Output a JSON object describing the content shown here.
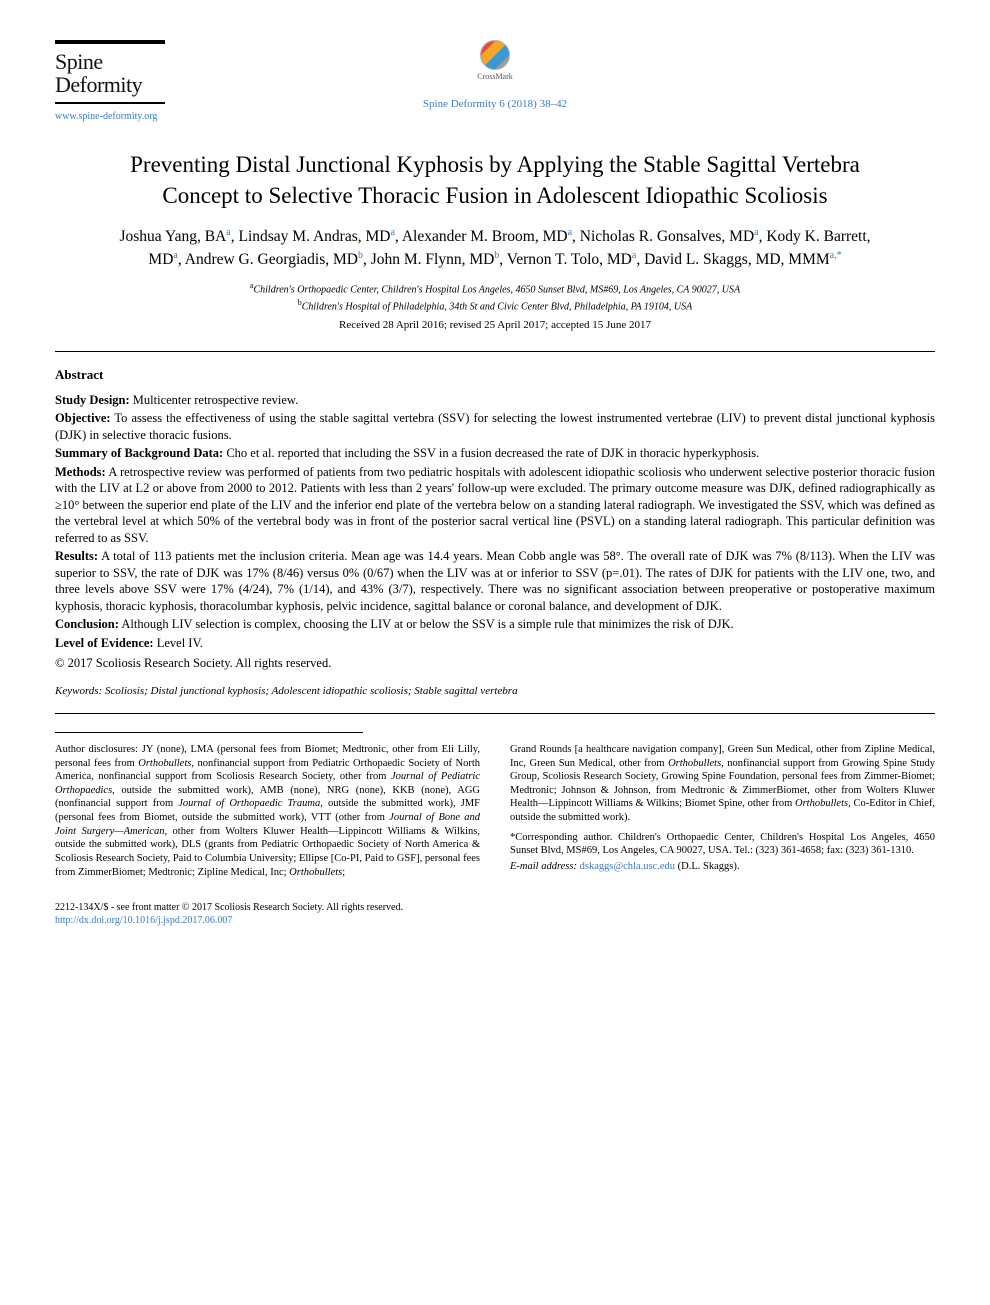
{
  "journal": {
    "name_line1": "Spine",
    "name_line2": "Deformity",
    "url": "www.spine-deformity.org",
    "citation": "Spine Deformity 6 (2018) 38–42"
  },
  "crossmark": {
    "label": "CrossMark"
  },
  "title": "Preventing Distal Junctional Kyphosis by Applying the Stable Sagittal Vertebra Concept to Selective Thoracic Fusion in Adolescent Idiopathic Scoliosis",
  "authors": [
    {
      "name": "Joshua Yang, BA",
      "aff": "a"
    },
    {
      "name": "Lindsay M. Andras, MD",
      "aff": "a"
    },
    {
      "name": "Alexander M. Broom, MD",
      "aff": "a"
    },
    {
      "name": "Nicholas R. Gonsalves, MD",
      "aff": "a"
    },
    {
      "name": "Kody K. Barrett, MD",
      "aff": "a"
    },
    {
      "name": "Andrew G. Georgiadis, MD",
      "aff": "b"
    },
    {
      "name": "John M. Flynn, MD",
      "aff": "b"
    },
    {
      "name": "Vernon T. Tolo, MD",
      "aff": "a"
    },
    {
      "name": "David L. Skaggs, MD, MMM",
      "aff": "a",
      "corr": true
    }
  ],
  "affiliations": {
    "a": "Children's Orthopaedic Center, Children's Hospital Los Angeles, 4650 Sunset Blvd, MS#69, Los Angeles, CA 90027, USA",
    "b": "Children's Hospital of Philadelphia, 34th St and Civic Center Blvd, Philadelphia, PA 19104, USA"
  },
  "dates": "Received 28 April 2016; revised 25 April 2017; accepted 15 June 2017",
  "abstract": {
    "label": "Abstract",
    "sections": [
      {
        "heading": "Study Design:",
        "text": "Multicenter retrospective review."
      },
      {
        "heading": "Objective:",
        "text": "To assess the effectiveness of using the stable sagittal vertebra (SSV) for selecting the lowest instrumented vertebrae (LIV) to prevent distal junctional kyphosis (DJK) in selective thoracic fusions."
      },
      {
        "heading": "Summary of Background Data:",
        "text": "Cho et al. reported that including the SSV in a fusion decreased the rate of DJK in thoracic hyperkyphosis."
      },
      {
        "heading": "Methods:",
        "text": "A retrospective review was performed of patients from two pediatric hospitals with adolescent idiopathic scoliosis who underwent selective posterior thoracic fusion with the LIV at L2 or above from 2000 to 2012. Patients with less than 2 years' follow-up were excluded. The primary outcome measure was DJK, defined radiographically as ≥10° between the superior end plate of the LIV and the inferior end plate of the vertebra below on a standing lateral radiograph. We investigated the SSV, which was defined as the vertebral level at which 50% of the vertebral body was in front of the posterior sacral vertical line (PSVL) on a standing lateral radiograph. This particular definition was referred to as SSV."
      },
      {
        "heading": "Results:",
        "text": "A total of 113 patients met the inclusion criteria. Mean age was 14.4 years. Mean Cobb angle was 58°. The overall rate of DJK was 7% (8/113). When the LIV was superior to SSV, the rate of DJK was 17% (8/46) versus 0% (0/67) when the LIV was at or inferior to SSV (p=.01). The rates of DJK for patients with the LIV one, two, and three levels above SSV were 17% (4/24), 7% (1/14), and 43% (3/7), respectively. There was no significant association between preoperative or postoperative maximum kyphosis, thoracic kyphosis, thoracolumbar kyphosis, pelvic incidence, sagittal balance or coronal balance, and development of DJK."
      },
      {
        "heading": "Conclusion:",
        "text": "Although LIV selection is complex, choosing the LIV at or below the SSV is a simple rule that minimizes the risk of DJK."
      },
      {
        "heading": "Level of Evidence:",
        "text": "Level IV."
      }
    ],
    "copyright": "© 2017 Scoliosis Research Society. All rights reserved."
  },
  "keywords": {
    "label": "Keywords:",
    "text": "Scoliosis; Distal junctional kyphosis; Adolescent idiopathic scoliosis; Stable sagittal vertebra"
  },
  "footnotes": {
    "left": "Author disclosures: JY (none), LMA (personal fees from Biomet; Medtronic, other from Eli Lilly, personal fees from Orthobullets, nonfinancial support from Pediatric Orthopaedic Society of North America, nonfinancial support from Scoliosis Research Society, other from Journal of Pediatric Orthopaedics, outside the submitted work), AMB (none), NRG (none), KKB (none), AGG (nonfinancial support from Journal of Orthopaedic Trauma, outside the submitted work), JMF (personal fees from Biomet, outside the submitted work), VTT (other from Journal of Bone and Joint Surgery—American, other from Wolters Kluwer Health—Lippincott Williams & Wilkins, outside the submitted work), DLS (grants from Pediatric Orthopaedic Society of North America & Scoliosis Research Society, Paid to Columbia University; Ellipse [Co-PI, Paid to GSF], personal fees from ZimmerBiomet; Medtronic; Zipline Medical, Inc; Orthobullets;",
    "right_top": "Grand Rounds [a healthcare navigation company], Green Sun Medical, other from Zipline Medical, Inc, Green Sun Medical, other from Orthobullets, nonfinancial support from Growing Spine Study Group, Scoliosis Research Society, Growing Spine Foundation, personal fees from Zimmer-Biomet; Medtronic; Johnson & Johnson, from Medtronic & ZimmerBiomet, other from Wolters Kluwer Health—Lippincott Williams & Wilkins; Biomet Spine, other from Orthobullets, Co-Editor in Chief, outside the submitted work).",
    "right_corr": "*Corresponding author. Children's Orthopaedic Center, Children's Hospital Los Angeles, 4650 Sunset Blvd, MS#69, Los Angeles, CA 90027, USA. Tel.: (323) 361-4658; fax: (323) 361-1310.",
    "right_email_label": "E-mail address:",
    "right_email": "dskaggs@chla.usc.edu",
    "right_email_name": "(D.L. Skaggs)."
  },
  "bottom": {
    "issn": "2212-134X/$ - see front matter © 2017 Scoliosis Research Society. All rights reserved.",
    "doi": "http://dx.doi.org/10.1016/j.jspd.2017.06.007"
  }
}
